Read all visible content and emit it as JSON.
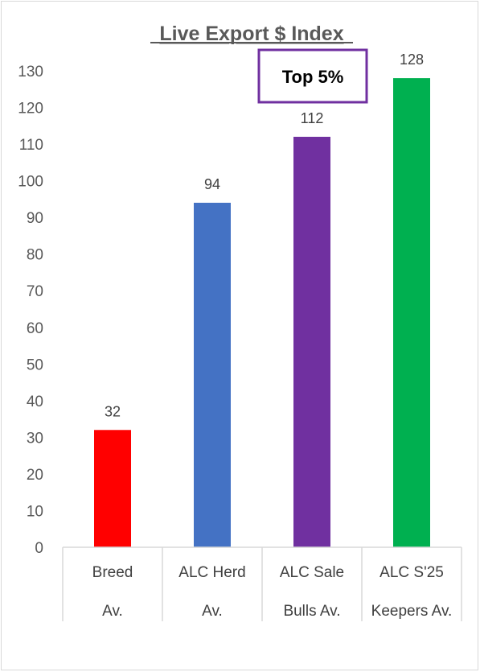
{
  "chart_data": {
    "type": "bar",
    "title": "Live Export $ Index",
    "categories": [
      [
        "Breed",
        "Av."
      ],
      [
        "ALC Herd",
        "Av."
      ],
      [
        "ALC Sale",
        "Bulls Av."
      ],
      [
        "ALC S'25",
        "Keepers Av."
      ]
    ],
    "values": [
      32,
      94,
      112,
      128
    ],
    "colors": [
      "#ff0000",
      "#4472c4",
      "#7030a0",
      "#00b050"
    ],
    "ylim": [
      0,
      130
    ],
    "yticks": [
      0,
      10,
      20,
      30,
      40,
      50,
      60,
      70,
      80,
      90,
      100,
      110,
      120,
      130
    ],
    "grid": false,
    "legend": "none",
    "annotation": {
      "text": "Top 5%",
      "border_color": "#7030a0"
    },
    "data_labels": true
  }
}
